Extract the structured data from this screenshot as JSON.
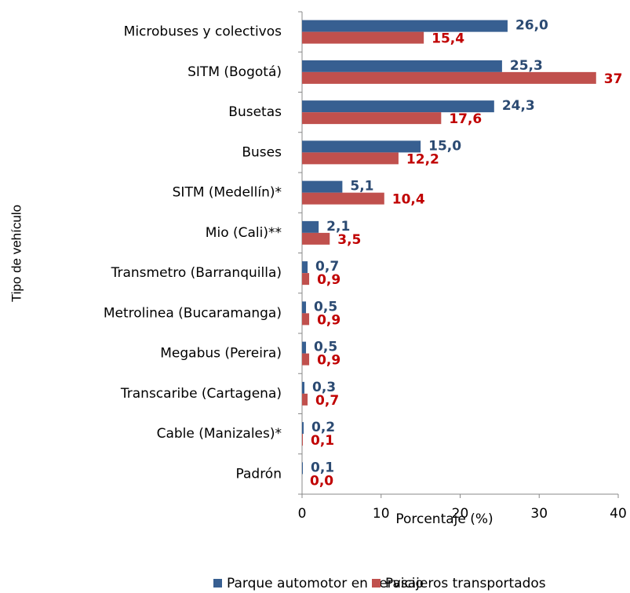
{
  "chart_data": {
    "type": "hbar",
    "xlabel": "Porcentaje (%)",
    "ylabel": "Tipo de vehículo",
    "categories": [
      "Microbuses y colectivos",
      "SITM (Bogotá)",
      "Busetas",
      "Buses",
      "SITM (Medellín)*",
      "Mio (Cali)**",
      "Transmetro (Barranquilla)",
      "Metrolinea (Bucaramanga)",
      "Megabus (Pereira)",
      "Transcaribe (Cartagena)",
      "Cable (Manizales)*",
      "Padrón"
    ],
    "series": [
      {
        "name": "Parque automotor en servicio",
        "color": "#375f91",
        "label_color": "#2b4a72",
        "values": [
          26.0,
          25.3,
          24.3,
          15.0,
          5.1,
          2.1,
          0.7,
          0.5,
          0.5,
          0.3,
          0.2,
          0.1
        ],
        "value_labels": [
          "26,0",
          "25,3",
          "24,3",
          "15,0",
          "5,1",
          "2,1",
          "0,7",
          "0,5",
          "0,5",
          "0,3",
          "0,2",
          "0,1"
        ]
      },
      {
        "name": "Pasajeros transportados",
        "color": "#c0504d",
        "label_color": "#c00000",
        "values": [
          15.4,
          37.2,
          17.6,
          12.2,
          10.4,
          3.5,
          0.9,
          0.9,
          0.9,
          0.7,
          0.1,
          0.0
        ],
        "value_labels": [
          "15,4",
          "37",
          "17,6",
          "12,2",
          "10,4",
          "3,5",
          "0,9",
          "0,9",
          "0,9",
          "0,7",
          "0,1",
          "0,0"
        ]
      }
    ],
    "xlim": [
      0,
      40
    ],
    "xticks": [
      0,
      10,
      20,
      30,
      40
    ],
    "grid": false,
    "legend": "bottom"
  }
}
